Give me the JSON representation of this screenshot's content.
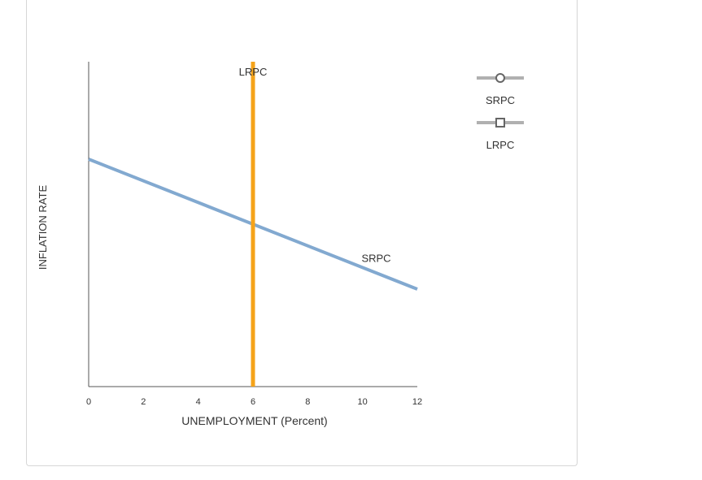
{
  "chart_data": {
    "type": "line",
    "xlabel": "UNEMPLOYMENT (Percent)",
    "ylabel": "INFLATION RATE",
    "xlim": [
      0,
      12
    ],
    "ylim": [
      0,
      12
    ],
    "x_ticks": [
      "0",
      "2",
      "4",
      "6",
      "8",
      "10",
      "12"
    ],
    "series": [
      {
        "name": "SRPC",
        "label": "SRPC",
        "color": "#82a9d0",
        "marker": "circle",
        "points": [
          [
            0,
            8.4
          ],
          [
            12,
            3.6
          ]
        ]
      },
      {
        "name": "LRPC",
        "label": "LRPC",
        "color": "#f5a31a",
        "marker": "square",
        "points": [
          [
            6,
            0
          ],
          [
            6,
            12
          ]
        ]
      }
    ],
    "legend": {
      "position": "right",
      "items": [
        {
          "name": "SRPC",
          "marker": "circle",
          "line_color": "#b0b0b0",
          "marker_color": "#666666"
        },
        {
          "name": "LRPC",
          "marker": "square",
          "line_color": "#b0b0b0",
          "marker_color": "#666666"
        }
      ]
    },
    "grid": false
  }
}
